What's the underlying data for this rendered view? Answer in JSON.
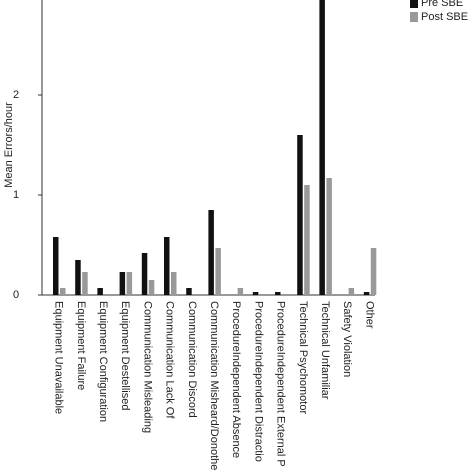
{
  "chart_data": {
    "type": "bar",
    "y_label": "Mean Errors/hour",
    "categories": [
      "Equipment Unavailable",
      "Equipment Failure",
      "Equipment Configuration",
      "Equipment Destellised",
      "Communication Misleading",
      "Communication Lack Of",
      "Communication Discord",
      "Communication Misheard/Donothe",
      "ProcedureIndependent Absence",
      "ProcedureIndependent Distractio",
      "ProcedureIndependent External P",
      "Technical Psychomotor",
      "Technical Unfamiliar",
      "Safety Violation",
      "Other"
    ],
    "series": [
      {
        "name": "Pre SBE",
        "color": "#111111",
        "values": [
          0.58,
          0.35,
          0.07,
          0.23,
          0.42,
          0.58,
          0.07,
          0.85,
          0,
          0.03,
          0.03,
          1.6,
          3.0,
          0,
          0.03
        ]
      },
      {
        "name": "Post SBE",
        "color": "#999999",
        "values": [
          0.07,
          0.23,
          0,
          0.23,
          0.15,
          0.23,
          0,
          0.47,
          0.07,
          0,
          0,
          1.1,
          1.17,
          0.07,
          0.47
        ]
      }
    ],
    "ylim": [
      0,
      3
    ],
    "yticks": [
      0,
      1,
      2
    ]
  }
}
